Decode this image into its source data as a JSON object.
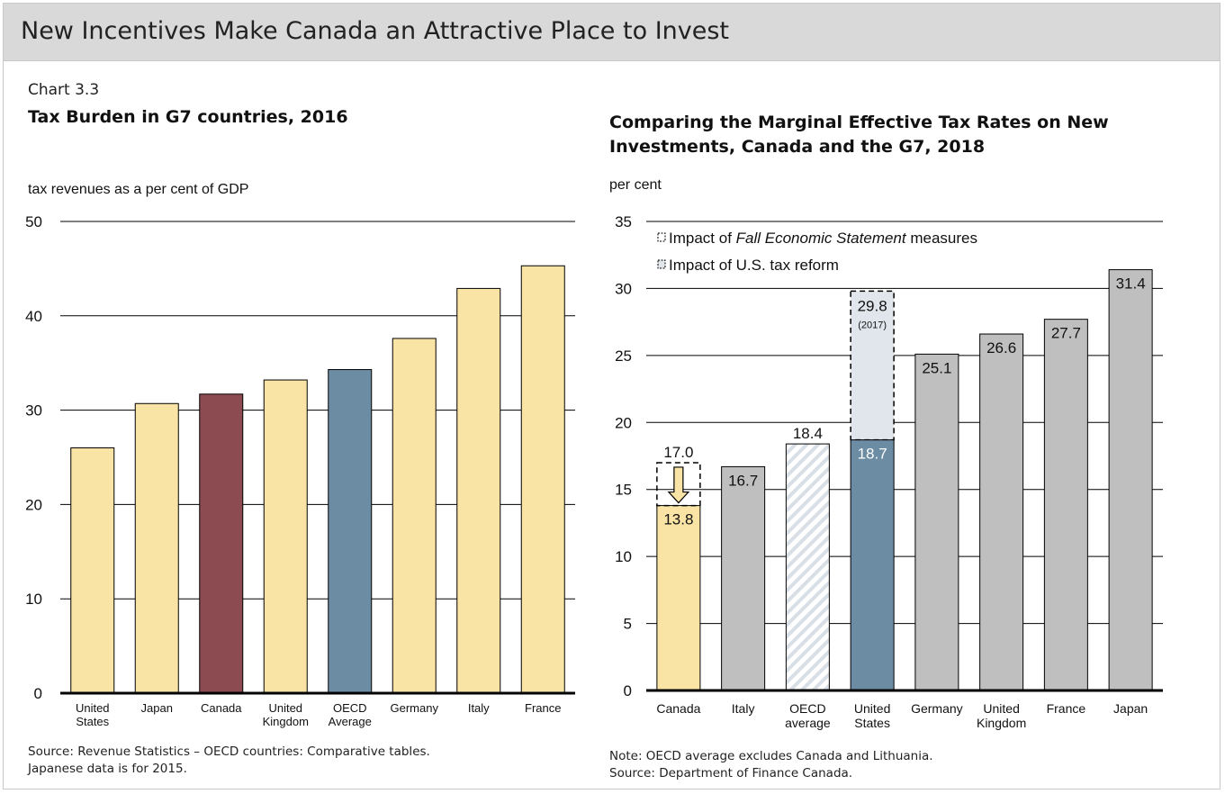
{
  "page": {
    "title": "New Incentives Make Canada an Attractive Place to Invest",
    "chart_number": "Chart 3.3"
  },
  "colors": {
    "yellow": "#f9e3a5",
    "maroon": "#8c4b50",
    "steel": "#6c8ca4",
    "gray": "#bfbfbf",
    "light": "#e1e6ec",
    "header": "#d9d9d9"
  },
  "chart_data": [
    {
      "type": "bar",
      "title": "Tax Burden in G7 countries, 2016",
      "ylabel": "tax revenues as a per cent of GDP",
      "ylim": [
        0,
        50
      ],
      "yticks": [
        "0",
        "10",
        "20",
        "30",
        "40",
        "50"
      ],
      "grid": true,
      "categories": [
        [
          "United",
          "States"
        ],
        [
          "Japan"
        ],
        [
          "Canada"
        ],
        [
          "United",
          "Kingdom"
        ],
        [
          "OECD",
          "Average"
        ],
        [
          "Germany"
        ],
        [
          "Italy"
        ],
        [
          "France"
        ]
      ],
      "values": [
        26.0,
        30.7,
        31.7,
        33.2,
        34.3,
        37.6,
        42.9,
        45.3
      ],
      "bar_colors": [
        "yellow",
        "yellow",
        "maroon",
        "yellow",
        "steel",
        "yellow",
        "yellow",
        "yellow"
      ],
      "note": [
        "Source: Revenue Statistics – OECD countries: Comparative tables.",
        "Japanese data is for 2015."
      ]
    },
    {
      "type": "bar",
      "title": [
        "Comparing the Marginal Effective Tax Rates on New",
        "Investments, Canada and the G7, 2018"
      ],
      "ylabel": "per cent",
      "ylim": [
        0,
        35
      ],
      "yticks": [
        "0",
        "5",
        "10",
        "15",
        "20",
        "25",
        "30",
        "35"
      ],
      "grid": true,
      "legend": {
        "placement": "top-left",
        "entries": [
          {
            "pre": "Impact of ",
            "italic": "Fall Economic Statement",
            "post": " measures"
          },
          {
            "pre": "Impact of U.S. tax reform",
            "italic": "",
            "post": ""
          }
        ]
      },
      "categories": [
        [
          "Canada"
        ],
        [
          "Italy"
        ],
        [
          "OECD",
          "average"
        ],
        [
          "United",
          "States"
        ],
        [
          "Germany"
        ],
        [
          "United",
          "Kingdom"
        ],
        [
          "France"
        ],
        [
          "Japan"
        ]
      ],
      "values": [
        13.8,
        16.7,
        18.4,
        18.7,
        25.1,
        26.6,
        27.7,
        31.4
      ],
      "labels": [
        "13.8",
        "16.7",
        "18.4",
        "18.7",
        "25.1",
        "26.6",
        "27.7",
        "31.4"
      ],
      "bar_colors": [
        "yellow",
        "gray",
        "hatch",
        "steel",
        "gray",
        "gray",
        "gray",
        "gray"
      ],
      "before_values": [
        17.0,
        null,
        null,
        29.8,
        null,
        null,
        null,
        null
      ],
      "before_labels": [
        "17.0",
        "",
        "",
        "29.8",
        "",
        "",
        "",
        ""
      ],
      "before_sublabels": [
        "",
        "",
        "",
        "(2017)",
        "",
        "",
        "",
        ""
      ],
      "note": [
        "Note: OECD average excludes Canada and Lithuania.",
        "Source: Department of Finance Canada."
      ]
    }
  ]
}
